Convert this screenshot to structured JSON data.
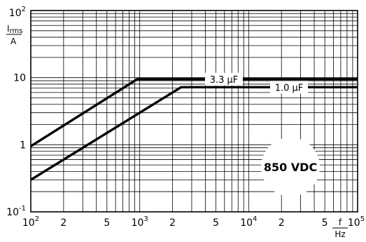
{
  "chart_data": {
    "type": "line",
    "x_scale": "log",
    "y_scale": "log",
    "xlim": [
      100,
      100000
    ],
    "ylim": [
      0.1,
      100
    ],
    "x_ticks": [
      {
        "value": 100,
        "base": "10",
        "exp": "2"
      },
      {
        "value": 200,
        "base": "2",
        "exp": ""
      },
      {
        "value": 500,
        "base": "5",
        "exp": ""
      },
      {
        "value": 1000,
        "base": "10",
        "exp": "3"
      },
      {
        "value": 2000,
        "base": "2",
        "exp": ""
      },
      {
        "value": 5000,
        "base": "5",
        "exp": ""
      },
      {
        "value": 10000,
        "base": "10",
        "exp": "4"
      },
      {
        "value": 20000,
        "base": "2",
        "exp": ""
      },
      {
        "value": 50000,
        "base": "5",
        "exp": ""
      },
      {
        "value": 100000,
        "base": "10",
        "exp": "5"
      }
    ],
    "y_ticks": [
      {
        "value": 0.1,
        "base": "10",
        "exp": "-1"
      },
      {
        "value": 1,
        "base": "1",
        "exp": ""
      },
      {
        "value": 10,
        "base": "10",
        "exp": ""
      },
      {
        "value": 100,
        "base": "10",
        "exp": "2"
      }
    ],
    "xlabel_num": "f",
    "xlabel_den": "Hz",
    "ylabel_num": "Irms",
    "ylabel_num_main": "I",
    "ylabel_num_sub": "rms",
    "ylabel_den": "A",
    "series": [
      {
        "name": "3.3 μF",
        "x": [
          100,
          950,
          100000
        ],
        "y": [
          0.95,
          9.5,
          9.5
        ]
      },
      {
        "name": "1.0 μF",
        "x": [
          100,
          2400,
          100000
        ],
        "y": [
          0.3,
          7.2,
          7.2
        ]
      }
    ],
    "annotation": "850 VDC",
    "grid": true
  }
}
